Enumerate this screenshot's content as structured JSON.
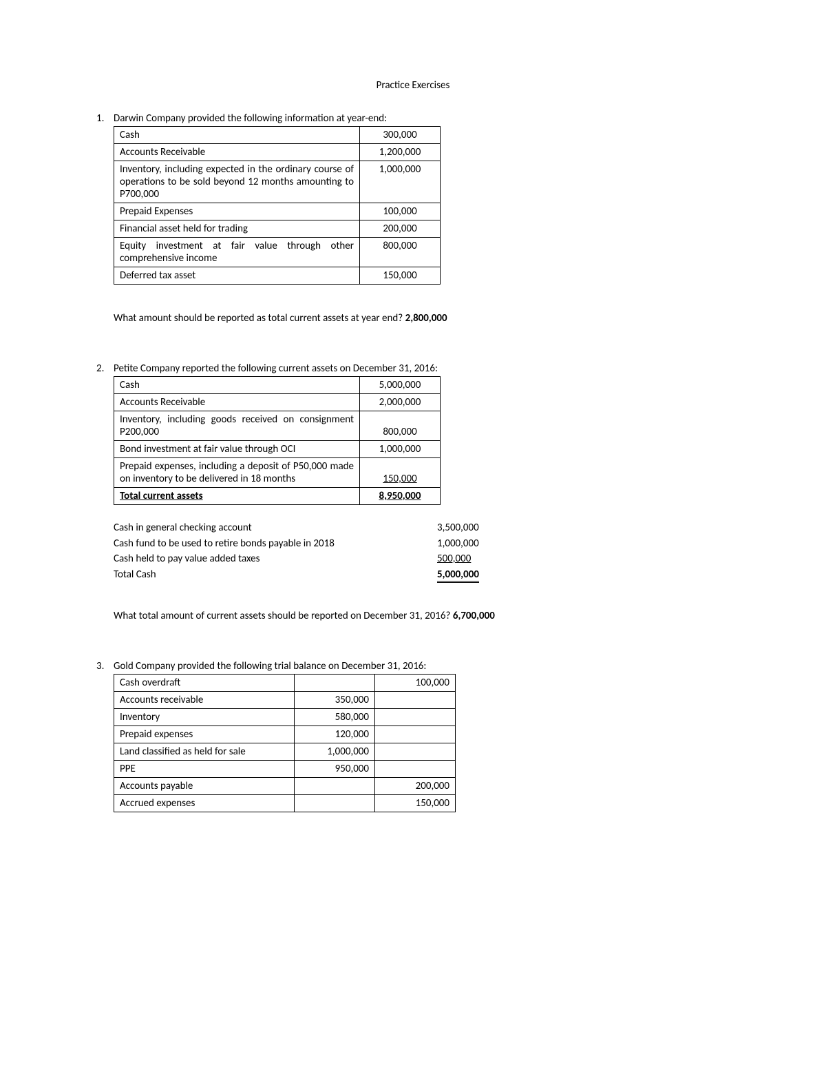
{
  "title": "Practice Exercises",
  "ex1": {
    "num": "1.",
    "prompt": "Darwin Company provided the following information at year-end:",
    "rows": [
      {
        "label": "Cash",
        "value": "300,000"
      },
      {
        "label": "Accounts Receivable",
        "value": "1,200,000"
      },
      {
        "label": "Inventory, including expected in the ordinary course of operations to be sold beyond 12 months amounting to P700,000",
        "value": "1,000,000"
      },
      {
        "label": "Prepaid Expenses",
        "value": "100,000"
      },
      {
        "label": "Financial asset held for trading",
        "value": "200,000"
      },
      {
        "label": "Equity investment at fair value through other comprehensive income",
        "value": "800,000"
      },
      {
        "label": "Deferred tax asset",
        "value": "150,000"
      }
    ],
    "question": "What amount should be reported as total current assets at year end? ",
    "answer": "2,800,000"
  },
  "ex2": {
    "num": "2.",
    "prompt": "Petite Company reported the following current assets on December 31, 2016:",
    "rows": [
      {
        "label": "Cash",
        "value": "5,000,000",
        "total": false,
        "under": false
      },
      {
        "label": "Accounts Receivable",
        "value": "2,000,000",
        "total": false,
        "under": false
      },
      {
        "label": "Inventory, including goods received on consignment P200,000",
        "value": "800,000",
        "total": false,
        "under": false
      },
      {
        "label": "Bond investment at fair value through OCI",
        "value": "1,000,000",
        "total": false,
        "under": false
      },
      {
        "label": "Prepaid expenses, including a deposit of P50,000 made on inventory to be delivered in 18 months",
        "value": "150,000",
        "total": false,
        "under": true
      },
      {
        "label": "Total current assets",
        "value": "8,950,000",
        "total": true,
        "under": false
      }
    ],
    "cash": [
      {
        "label": "Cash in general checking account",
        "value": "3,500,000",
        "under": false,
        "total": false
      },
      {
        "label": "Cash fund to be used to retire bonds payable in 2018",
        "value": "1,000,000",
        "under": false,
        "total": false
      },
      {
        "label": "Cash held to pay value added taxes",
        "value": "500,000",
        "under": true,
        "total": false
      },
      {
        "label": "Total Cash",
        "value": "5,000,000",
        "under": false,
        "total": true
      }
    ],
    "question": "What total amount of current assets should be reported on December 31, 2016? ",
    "answer": "6,700,000"
  },
  "ex3": {
    "num": "3.",
    "prompt": "Gold Company provided the following trial balance on December 31, 2016:",
    "rows": [
      {
        "label": "Cash overdraft",
        "debit": "",
        "credit": "100,000"
      },
      {
        "label": "Accounts receivable",
        "debit": "350,000",
        "credit": ""
      },
      {
        "label": "Inventory",
        "debit": "580,000",
        "credit": ""
      },
      {
        "label": "Prepaid expenses",
        "debit": "120,000",
        "credit": ""
      },
      {
        "label": "Land classified as held for sale",
        "debit": "1,000,000",
        "credit": ""
      },
      {
        "label": "PPE",
        "debit": "950,000",
        "credit": ""
      },
      {
        "label": "Accounts payable",
        "debit": "",
        "credit": "200,000"
      },
      {
        "label": "Accrued expenses",
        "debit": "",
        "credit": "150,000"
      }
    ]
  }
}
